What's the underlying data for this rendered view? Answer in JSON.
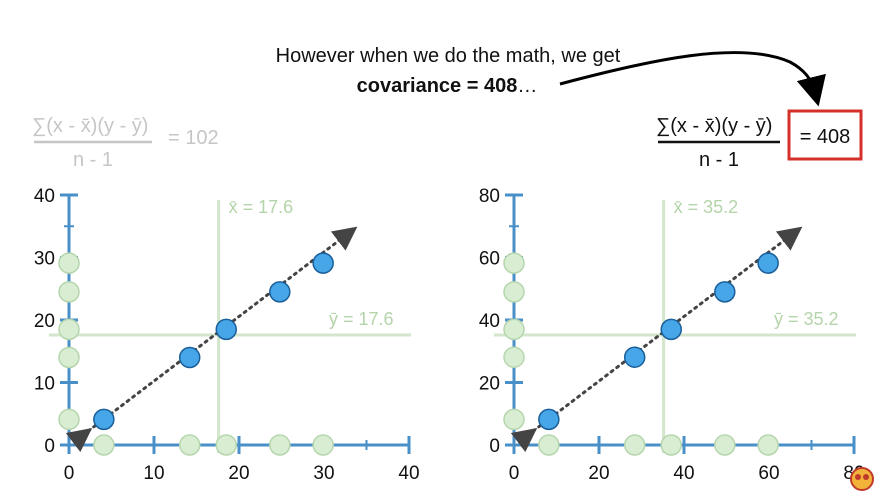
{
  "annotation": {
    "line1": "However when we do the math, we get",
    "line2_bold": "covariance = 408",
    "line2_rest": "…"
  },
  "left_formula": {
    "numerator": "∑(x - x̄)(y - ȳ)",
    "denominator": "n - 1",
    "result": "= 102"
  },
  "right_formula": {
    "numerator": "∑(x - x̄)(y - ȳ)",
    "denominator": "n - 1",
    "result": "= 408"
  },
  "colors": {
    "axis": "#4a90c8",
    "point_fill": "#46a6e8",
    "point_stroke": "#1a5f9a",
    "marginal_fill": "#d9edd3",
    "marginal_stroke": "#b6d6ad",
    "mean_line": "#d3e6cc",
    "mean_label": "#b4d4aa",
    "faded_text": "#c6c6c6",
    "highlight_box": "#d6302a",
    "green_bar": "#3aaa2e",
    "trend": "#444444"
  },
  "chart_data": [
    {
      "type": "scatter",
      "xlim": [
        0,
        40
      ],
      "ylim": [
        0,
        40
      ],
      "xticks": [
        0,
        10,
        20,
        30,
        40
      ],
      "yticks": [
        0,
        10,
        20,
        30,
        40
      ],
      "points": [
        {
          "x": 4.1,
          "y": 4.1
        },
        {
          "x": 14.2,
          "y": 14.0
        },
        {
          "x": 18.5,
          "y": 18.5
        },
        {
          "x": 24.8,
          "y": 24.5
        },
        {
          "x": 29.9,
          "y": 29.1
        }
      ],
      "x_mean": 17.6,
      "y_mean": 17.6,
      "x_mean_label": "x̄ = 17.6",
      "y_mean_label": "ȳ = 17.6",
      "grid": false
    },
    {
      "type": "scatter",
      "xlim": [
        0,
        80
      ],
      "ylim": [
        0,
        80
      ],
      "xticks": [
        0,
        20,
        40,
        60,
        80
      ],
      "yticks": [
        0,
        20,
        40,
        60,
        80
      ],
      "points": [
        {
          "x": 8.2,
          "y": 8.2
        },
        {
          "x": 28.4,
          "y": 28.1
        },
        {
          "x": 37.0,
          "y": 37.0
        },
        {
          "x": 49.6,
          "y": 49.0
        },
        {
          "x": 59.8,
          "y": 58.2
        }
      ],
      "x_mean": 35.2,
      "y_mean": 35.2,
      "x_mean_label": "x̄ = 35.2",
      "y_mean_label": "ȳ = 35.2",
      "grid": false
    }
  ]
}
